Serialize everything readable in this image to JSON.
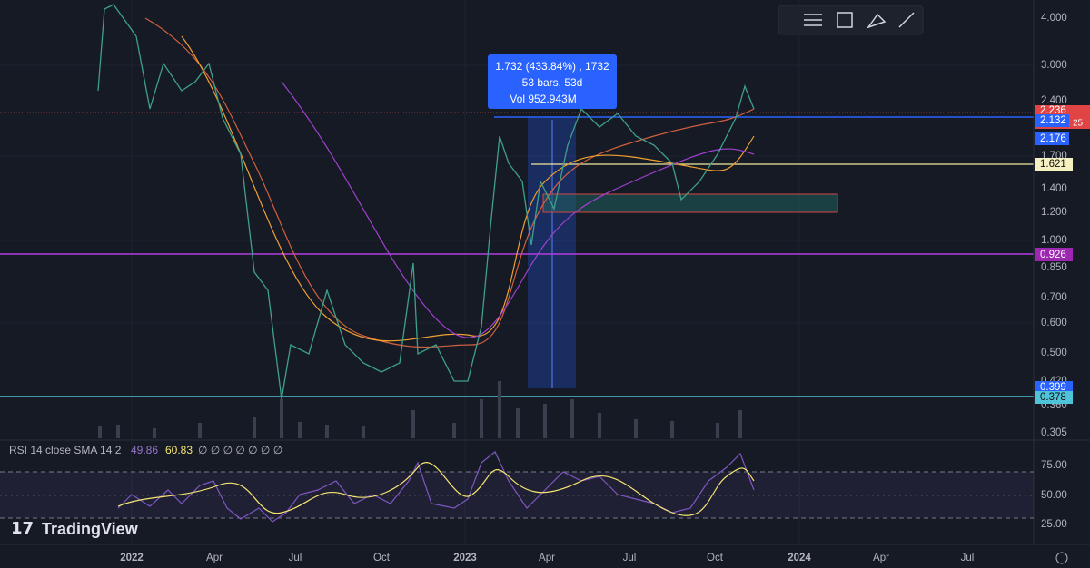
{
  "price_axis": {
    "ticks": [
      "4.000",
      "3.000",
      "2.400",
      "1.700",
      "1.400",
      "1.200",
      "1.000",
      "0.850",
      "0.700",
      "0.600",
      "0.500",
      "0.420",
      "0.360",
      "0.305"
    ],
    "markers": {
      "last": "2.236",
      "last_suffix": "25",
      "level_1": "2.132",
      "level_2": "2.176",
      "level_3": "1.621",
      "level_4": "0.926",
      "level_5": "0.399",
      "level_6": "0.378"
    }
  },
  "time_axis": {
    "labels": [
      "2022",
      "Apr",
      "Jul",
      "Oct",
      "2023",
      "Apr",
      "Jul",
      "Oct",
      "2024",
      "Apr",
      "Jul"
    ]
  },
  "measure": {
    "line_1": "1.732 (433.84%) , 1732",
    "line_2": "53 bars, 53d",
    "line_3": "Vol 952.943M"
  },
  "rsi": {
    "title": "RSI 14 close SMA 14 2",
    "rsi_value": "49.86",
    "sma_value": "60.83",
    "placeholders": "∅ ∅ ∅ ∅ ∅ ∅ ∅",
    "axis": [
      "75.00",
      "50.00",
      "25.00"
    ]
  },
  "branding": "TradingView"
}
